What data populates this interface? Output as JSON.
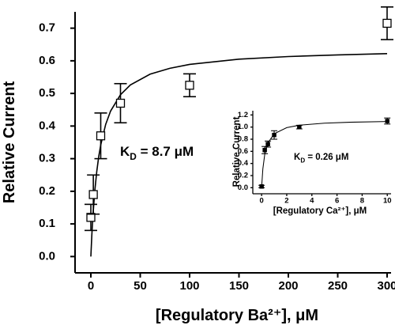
{
  "chart_data": [
    {
      "type": "scatter",
      "x_label": "[Regulatory Ba²⁺], μM",
      "y_label": "Relative Current",
      "annotation": {
        "symbol": "K",
        "subscript": "D",
        "text": " = 8.7 μM"
      },
      "points": {
        "x": [
          0,
          2.5,
          10,
          30,
          100,
          300
        ],
        "values": [
          0.12,
          0.19,
          0.37,
          0.47,
          0.525,
          0.715
        ],
        "errors": [
          0.04,
          0.06,
          0.07,
          0.06,
          0.035,
          0.05
        ],
        "marker": "open-square",
        "color": "#000000"
      },
      "fit": {
        "x": [
          0,
          1,
          2,
          4,
          6,
          8,
          10,
          15,
          20,
          30,
          40,
          60,
          80,
          100,
          150,
          200,
          250,
          300
        ],
        "values": [
          0,
          0.066,
          0.12,
          0.202,
          0.261,
          0.307,
          0.342,
          0.405,
          0.446,
          0.496,
          0.526,
          0.559,
          0.577,
          0.589,
          0.605,
          0.613,
          0.618,
          0.622
        ],
        "color": "#000000"
      },
      "xlim": [
        -16,
        304
      ],
      "ylim": [
        -0.05,
        0.75
      ],
      "xticks": [
        0,
        50,
        100,
        150,
        200,
        250,
        300
      ],
      "yticks": [
        {
          "value": 0,
          "label": "0.0"
        },
        0.1,
        0.2,
        0.3,
        0.4,
        0.5,
        0.6,
        0.7
      ]
    },
    {
      "type": "scatter",
      "x_label": "[Regulatory Ca²⁺], μM",
      "y_label": "Relative Current",
      "annotation": {
        "symbol": "K",
        "subscript": "D",
        "text": " = 0.26 μM"
      },
      "points": {
        "x": [
          0,
          0.25,
          0.5,
          1,
          3,
          10
        ],
        "values": [
          0.02,
          0.62,
          0.72,
          0.87,
          1.0,
          1.1
        ],
        "errors": [
          0.02,
          0.06,
          0.05,
          0.07,
          0.03,
          0.05
        ],
        "marker": "filled-square",
        "color": "#000000"
      },
      "fit": {
        "x": [
          0,
          0.1,
          0.25,
          0.5,
          1,
          2,
          3,
          5,
          7,
          10
        ],
        "values": [
          0,
          0.311,
          0.549,
          0.737,
          0.889,
          0.991,
          1.031,
          1.065,
          1.08,
          1.092
        ],
        "color": "#000000"
      },
      "xlim": [
        -0.7,
        10.3
      ],
      "ylim": [
        -0.1,
        1.27
      ],
      "xticks": [
        0,
        2,
        4,
        6,
        8,
        10
      ],
      "yticks": [
        {
          "value": 0,
          "label": "0.0"
        },
        0.2,
        0.4,
        0.6,
        0.8,
        {
          "value": 1,
          "label": "1.0"
        },
        1.2
      ]
    }
  ]
}
